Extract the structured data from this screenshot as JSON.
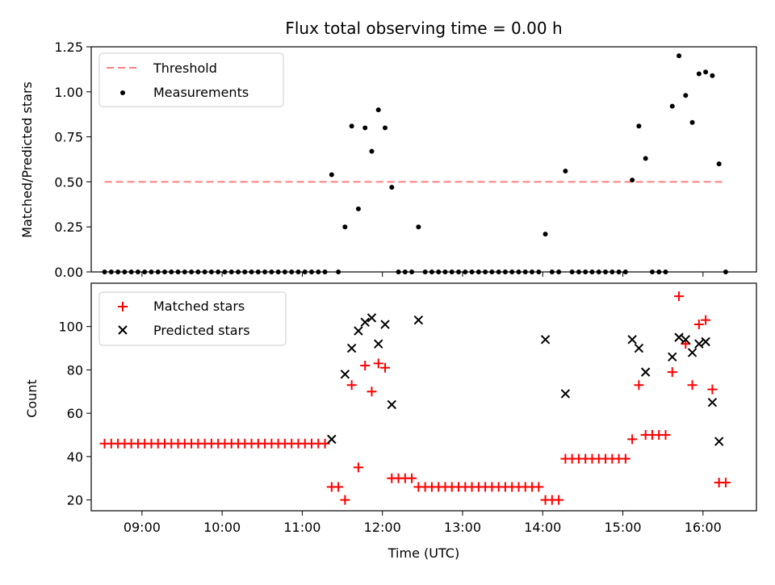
{
  "chart_data": [
    {
      "type": "scatter",
      "title": "Flux total observing time = 0.00 h",
      "xlabel": "",
      "ylabel": "Matched/Predicted stars",
      "xlim": [
        "08:22",
        "16:40"
      ],
      "ylim": [
        0,
        1.25
      ],
      "yticks": [
        "0.00",
        "0.25",
        "0.50",
        "0.75",
        "1.00",
        "1.25"
      ],
      "legend": "top-left",
      "colors": {
        "threshold": "#ff7f7f",
        "measurements": "#000000"
      },
      "series": [
        {
          "name": "Threshold",
          "kind": "dashed-line",
          "x": [
            "08:32",
            "16:17"
          ],
          "values": [
            0.5,
            0.5
          ]
        },
        {
          "name": "Measurements",
          "kind": "dot",
          "x": [
            "08:32",
            "08:37",
            "08:42",
            "08:47",
            "08:52",
            "08:57",
            "09:02",
            "09:07",
            "09:12",
            "09:17",
            "09:22",
            "09:27",
            "09:32",
            "09:37",
            "09:42",
            "09:47",
            "09:52",
            "09:57",
            "10:02",
            "10:07",
            "10:12",
            "10:17",
            "10:22",
            "10:27",
            "10:32",
            "10:37",
            "10:42",
            "10:47",
            "10:52",
            "10:57",
            "11:02",
            "11:07",
            "11:12",
            "11:17",
            "11:22",
            "11:27",
            "11:32",
            "11:37",
            "11:42",
            "11:47",
            "11:52",
            "11:57",
            "12:02",
            "12:07",
            "12:12",
            "12:17",
            "12:22",
            "12:27",
            "12:32",
            "12:37",
            "12:42",
            "12:47",
            "12:52",
            "12:57",
            "13:02",
            "13:07",
            "13:12",
            "13:17",
            "13:22",
            "13:27",
            "13:32",
            "13:37",
            "13:42",
            "13:47",
            "13:52",
            "13:57",
            "14:02",
            "14:07",
            "14:12",
            "14:17",
            "14:22",
            "14:27",
            "14:32",
            "14:37",
            "14:42",
            "14:47",
            "14:52",
            "14:57",
            "15:02",
            "15:07",
            "15:12",
            "15:17",
            "15:22",
            "15:27",
            "15:32",
            "15:37",
            "15:42",
            "15:47",
            "15:52",
            "15:57",
            "16:02",
            "16:07",
            "16:12",
            "16:17"
          ],
          "values": [
            0,
            0,
            0,
            0,
            0,
            0,
            0,
            0,
            0,
            0,
            0,
            0,
            0,
            0,
            0,
            0,
            0,
            0,
            0,
            0,
            0,
            0,
            0,
            0,
            0,
            0,
            0,
            0,
            0,
            0,
            0,
            0,
            0,
            0,
            0.54,
            0,
            0.25,
            0.81,
            0.35,
            0.8,
            0.67,
            0.9,
            0.8,
            0.47,
            0,
            0,
            0,
            0.25,
            0,
            0,
            0,
            0,
            0,
            0,
            0,
            0,
            0,
            0,
            0,
            0,
            0,
            0,
            0,
            0,
            0,
            0,
            0.21,
            0,
            0,
            0.56,
            0,
            0,
            0,
            0,
            0,
            0,
            0,
            0,
            0,
            0.51,
            0.81,
            0.63,
            0,
            0,
            0,
            0.92,
            1.2,
            0.98,
            0.83,
            1.1,
            1.11,
            1.09,
            0.6,
            0
          ]
        }
      ]
    },
    {
      "type": "scatter",
      "title": "",
      "xlabel": "Time (UTC)",
      "ylabel": "Count",
      "xlim": [
        "08:22",
        "16:40"
      ],
      "ylim": [
        15,
        120
      ],
      "yticks": [
        "20",
        "40",
        "60",
        "80",
        "100"
      ],
      "xticks": [
        "09:00",
        "10:00",
        "11:00",
        "12:00",
        "13:00",
        "14:00",
        "15:00",
        "16:00"
      ],
      "legend": "top-left",
      "colors": {
        "matched": "#ff0000",
        "predicted": "#000000"
      },
      "series": [
        {
          "name": "Matched stars",
          "kind": "plus",
          "x": [
            "08:32",
            "08:37",
            "08:42",
            "08:47",
            "08:52",
            "08:57",
            "09:02",
            "09:07",
            "09:12",
            "09:17",
            "09:22",
            "09:27",
            "09:32",
            "09:37",
            "09:42",
            "09:47",
            "09:52",
            "09:57",
            "10:02",
            "10:07",
            "10:12",
            "10:17",
            "10:22",
            "10:27",
            "10:32",
            "10:37",
            "10:42",
            "10:47",
            "10:52",
            "10:57",
            "11:02",
            "11:07",
            "11:12",
            "11:17",
            "11:22",
            "11:27",
            "11:32",
            "11:37",
            "11:42",
            "11:47",
            "11:52",
            "11:57",
            "12:02",
            "12:07",
            "12:12",
            "12:17",
            "12:22",
            "12:27",
            "12:32",
            "12:37",
            "12:42",
            "12:47",
            "12:52",
            "12:57",
            "13:02",
            "13:07",
            "13:12",
            "13:17",
            "13:22",
            "13:27",
            "13:32",
            "13:37",
            "13:42",
            "13:47",
            "13:52",
            "13:57",
            "14:02",
            "14:07",
            "14:12",
            "14:17",
            "14:22",
            "14:27",
            "14:32",
            "14:37",
            "14:42",
            "14:47",
            "14:52",
            "14:57",
            "15:02",
            "15:07",
            "15:12",
            "15:17",
            "15:22",
            "15:27",
            "15:32",
            "15:37",
            "15:42",
            "15:47",
            "15:52",
            "15:57",
            "16:02",
            "16:07",
            "16:12",
            "16:17"
          ],
          "values": [
            46,
            46,
            46,
            46,
            46,
            46,
            46,
            46,
            46,
            46,
            46,
            46,
            46,
            46,
            46,
            46,
            46,
            46,
            46,
            46,
            46,
            46,
            46,
            46,
            46,
            46,
            46,
            46,
            46,
            46,
            46,
            46,
            46,
            46,
            26,
            26,
            20,
            73,
            35,
            82,
            70,
            83,
            81,
            30,
            30,
            30,
            30,
            26,
            26,
            26,
            26,
            26,
            26,
            26,
            26,
            26,
            26,
            26,
            26,
            26,
            26,
            26,
            26,
            26,
            26,
            26,
            20,
            20,
            20,
            39,
            39,
            39,
            39,
            39,
            39,
            39,
            39,
            39,
            39,
            48,
            73,
            50,
            50,
            50,
            50,
            79,
            114,
            92,
            73,
            101,
            103,
            71,
            28,
            28
          ]
        },
        {
          "name": "Predicted stars",
          "kind": "x",
          "x": [
            "11:22",
            "11:32",
            "11:37",
            "11:42",
            "11:47",
            "11:52",
            "11:57",
            "12:02",
            "12:07",
            "12:27",
            "14:02",
            "14:17",
            "15:07",
            "15:12",
            "15:17",
            "15:37",
            "15:42",
            "15:47",
            "15:52",
            "15:57",
            "16:02",
            "16:07",
            "16:12"
          ],
          "values": [
            48,
            78,
            90,
            98,
            102,
            104,
            92,
            101,
            64,
            103,
            94,
            69,
            94,
            90,
            79,
            86,
            95,
            94,
            88,
            92,
            93,
            65,
            47
          ]
        }
      ]
    }
  ]
}
